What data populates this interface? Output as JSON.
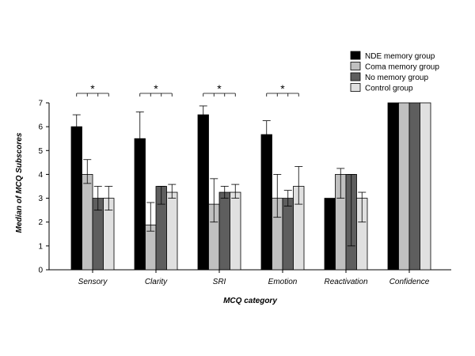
{
  "chart_data": {
    "type": "bar",
    "xlabel": "MCQ category",
    "ylabel": "Median of MCQ Subscores",
    "ylim": [
      0,
      7
    ],
    "yticks": [
      0,
      1,
      2,
      3,
      4,
      5,
      6,
      7
    ],
    "grid": false,
    "legend_position": "top-right",
    "categories": [
      "Sensory",
      "Clarity",
      "SRI",
      "Emotion",
      "Reactivation",
      "Confidence"
    ],
    "series": [
      {
        "name": "NDE memory group",
        "color": "#000000",
        "values": [
          6,
          5.5,
          6.5,
          5.67,
          3,
          7
        ],
        "error_high": [
          6.5,
          6.62,
          6.87,
          6.25,
          null,
          null
        ],
        "error_low": [
          null,
          null,
          null,
          null,
          null,
          null
        ]
      },
      {
        "name": "Coma memory group",
        "color": "#c0c0c0",
        "values": [
          4,
          1.88,
          2.75,
          3,
          4,
          7
        ],
        "error_high": [
          4.62,
          2.82,
          3.82,
          4,
          4.25,
          null
        ],
        "error_low": [
          3.62,
          1.62,
          2,
          2.2,
          3,
          null
        ]
      },
      {
        "name": "No memory group",
        "color": "#5e5e5e",
        "values": [
          3,
          3.5,
          3.25,
          3,
          4,
          7
        ],
        "error_high": [
          3.5,
          3.5,
          3.5,
          3.33,
          4,
          null
        ],
        "error_low": [
          2.5,
          2.75,
          3,
          2.67,
          1,
          null
        ]
      },
      {
        "name": "Control group",
        "color": "#e0e0e0",
        "values": [
          3,
          3.25,
          3.25,
          3.5,
          3,
          7
        ],
        "error_high": [
          3.5,
          3.58,
          3.58,
          4.33,
          3.25,
          null
        ],
        "error_low": [
          2.5,
          3,
          3,
          2.75,
          2,
          null
        ]
      }
    ],
    "annotations": [
      {
        "text": "*",
        "category": "Sensory"
      },
      {
        "text": "*",
        "category": "Clarity"
      },
      {
        "text": "*",
        "category": "SRI"
      },
      {
        "text": "*",
        "category": "Emotion"
      }
    ]
  }
}
